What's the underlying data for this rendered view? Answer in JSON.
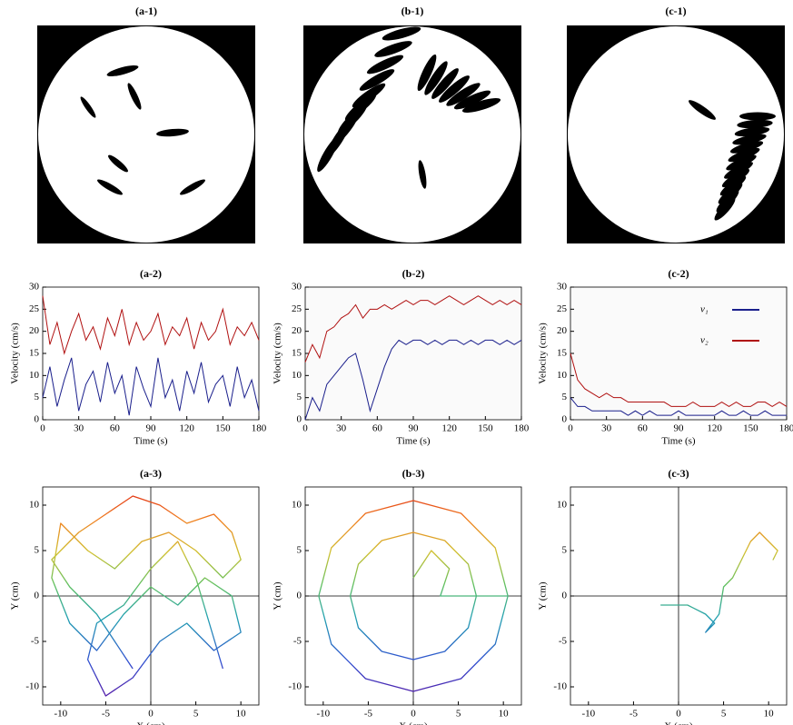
{
  "image_panels": [
    {
      "title": "(a-1)"
    },
    {
      "title": "(b-1)"
    },
    {
      "title": "(c-1)"
    }
  ],
  "chart_data": [
    {
      "type": "line",
      "title": "(a-2)",
      "x_label": "Time (s)",
      "y_label": "Velocity (cm/s)",
      "xlim": [
        0,
        180
      ],
      "ylim": [
        0,
        30
      ],
      "xticks": [
        0,
        30,
        60,
        90,
        120,
        150,
        180
      ],
      "yticks": [
        0,
        5,
        10,
        15,
        20,
        25,
        30
      ],
      "x": [
        0,
        6,
        12,
        18,
        24,
        30,
        36,
        42,
        48,
        54,
        60,
        66,
        72,
        78,
        84,
        90,
        96,
        102,
        108,
        114,
        120,
        126,
        132,
        138,
        144,
        150,
        156,
        162,
        168,
        174,
        180
      ],
      "series": [
        {
          "name": "v₁",
          "color": "#1a1f8c",
          "values": [
            5,
            12,
            3,
            9,
            14,
            2,
            8,
            11,
            4,
            13,
            6,
            10,
            1,
            12,
            7,
            3,
            14,
            5,
            9,
            2,
            11,
            6,
            13,
            4,
            8,
            10,
            3,
            12,
            5,
            9,
            2
          ]
        },
        {
          "name": "v₂",
          "color": "#b01010",
          "values": [
            28,
            17,
            22,
            15,
            20,
            24,
            18,
            21,
            16,
            23,
            19,
            25,
            17,
            22,
            18,
            20,
            24,
            17,
            21,
            19,
            23,
            16,
            22,
            18,
            20,
            25,
            17,
            21,
            19,
            22,
            18
          ]
        }
      ]
    },
    {
      "type": "line",
      "title": "(b-2)",
      "x_label": "Time (s)",
      "y_label": "Velocity (cm/s)",
      "xlim": [
        0,
        180
      ],
      "ylim": [
        0,
        30
      ],
      "xticks": [
        0,
        30,
        60,
        90,
        120,
        150,
        180
      ],
      "yticks": [
        0,
        5,
        10,
        15,
        20,
        25,
        30
      ],
      "x": [
        0,
        6,
        12,
        18,
        24,
        30,
        36,
        42,
        48,
        54,
        60,
        66,
        72,
        78,
        84,
        90,
        96,
        102,
        108,
        114,
        120,
        126,
        132,
        138,
        144,
        150,
        156,
        162,
        168,
        174,
        180
      ],
      "series": [
        {
          "name": "v₁",
          "color": "#1a1f8c",
          "values": [
            0,
            5,
            2,
            8,
            10,
            12,
            14,
            15,
            9,
            2,
            7,
            12,
            16,
            18,
            17,
            18,
            18,
            17,
            18,
            17,
            18,
            18,
            17,
            18,
            17,
            18,
            18,
            17,
            18,
            17,
            18
          ]
        },
        {
          "name": "v₂",
          "color": "#b01010",
          "values": [
            13,
            17,
            14,
            20,
            21,
            23,
            24,
            26,
            23,
            25,
            25,
            26,
            25,
            26,
            27,
            26,
            27,
            27,
            26,
            27,
            28,
            27,
            26,
            27,
            28,
            27,
            26,
            27,
            26,
            27,
            26
          ]
        }
      ]
    },
    {
      "type": "line",
      "title": "(c-2)",
      "x_label": "Time (s)",
      "y_label": "Velocity (cm/s)",
      "xlim": [
        0,
        180
      ],
      "ylim": [
        0,
        30
      ],
      "xticks": [
        0,
        30,
        60,
        90,
        120,
        150,
        180
      ],
      "yticks": [
        0,
        5,
        10,
        15,
        20,
        25,
        30
      ],
      "legend": "upper right",
      "x": [
        0,
        6,
        12,
        18,
        24,
        30,
        36,
        42,
        48,
        54,
        60,
        66,
        72,
        78,
        84,
        90,
        96,
        102,
        108,
        114,
        120,
        126,
        132,
        138,
        144,
        150,
        156,
        162,
        168,
        174,
        180
      ],
      "series": [
        {
          "name": "v₁",
          "color": "#1a1f8c",
          "values": [
            5,
            3,
            3,
            2,
            2,
            2,
            2,
            2,
            1,
            2,
            1,
            2,
            1,
            1,
            1,
            2,
            1,
            1,
            1,
            1,
            1,
            2,
            1,
            1,
            2,
            1,
            1,
            2,
            1,
            1,
            1
          ]
        },
        {
          "name": "v₂",
          "color": "#b01010",
          "values": [
            15,
            9,
            7,
            6,
            5,
            6,
            5,
            5,
            4,
            4,
            4,
            4,
            4,
            4,
            3,
            3,
            3,
            4,
            3,
            3,
            3,
            4,
            3,
            4,
            3,
            3,
            4,
            4,
            3,
            4,
            3
          ]
        }
      ]
    },
    {
      "type": "trajectory",
      "title": "(a-3)",
      "x_label": "X (cm)",
      "y_label": "Y (cm)",
      "xlim": [
        -12,
        12
      ],
      "ylim": [
        -12,
        12
      ],
      "xticks": [
        -10,
        -5,
        0,
        5,
        10
      ],
      "yticks": [
        -10,
        -5,
        0,
        5,
        10
      ],
      "colormap": "rainbow",
      "x": [
        -2,
        -4,
        -6,
        -9,
        -11,
        -8,
        -5,
        -2,
        1,
        4,
        7,
        9,
        10,
        8,
        5,
        2,
        -1,
        -4,
        -7,
        -10,
        -11,
        -9,
        -6,
        -3,
        0,
        3,
        6,
        9,
        10,
        7,
        4,
        1,
        -2,
        -5,
        -7,
        -6,
        -3,
        0,
        3,
        5,
        8
      ],
      "y": [
        -8,
        -5,
        -2,
        1,
        4,
        7,
        9,
        11,
        10,
        8,
        9,
        7,
        4,
        2,
        5,
        7,
        6,
        3,
        5,
        8,
        2,
        -3,
        -6,
        -2,
        1,
        -1,
        2,
        0,
        -4,
        -6,
        -3,
        -5,
        -9,
        -11,
        -7,
        -3,
        -1,
        3,
        6,
        2,
        -8
      ]
    },
    {
      "type": "trajectory",
      "title": "(b-3)",
      "x_label": "X (cm)",
      "y_label": "Y (cm)",
      "xlim": [
        -12,
        12
      ],
      "ylim": [
        -12,
        12
      ],
      "xticks": [
        -10,
        -5,
        0,
        5,
        10
      ],
      "yticks": [
        -10,
        -5,
        0,
        5,
        10
      ],
      "colormap": "rainbow",
      "x": [
        0,
        2,
        4,
        3,
        7,
        6.1,
        3.5,
        0,
        -3.5,
        -6.1,
        -7,
        -6.1,
        -3.5,
        0,
        3.5,
        6.1,
        7,
        10.5,
        9.1,
        5.3,
        0,
        -5.3,
        -9.1,
        -10.5,
        -9.1,
        -5.3,
        0,
        5.3,
        9.1,
        10.5,
        9.1,
        5.3,
        0,
        -5.3,
        -9.1,
        -10.5
      ],
      "y": [
        2,
        5,
        3,
        0,
        0,
        3.5,
        6.1,
        7,
        6.1,
        3.5,
        0,
        -3.5,
        -6.1,
        -7,
        -6.1,
        -3.5,
        0,
        0,
        5.3,
        9.1,
        10.5,
        9.1,
        5.3,
        0,
        -5.3,
        -9.1,
        -10.5,
        -9.1,
        -5.3,
        0,
        5.3,
        9.1,
        10.5,
        9.1,
        5.3,
        0
      ]
    },
    {
      "type": "trajectory",
      "title": "(c-3)",
      "x_label": "X (cm)",
      "y_label": "Y (cm)",
      "xlim": [
        -12,
        12
      ],
      "ylim": [
        -12,
        12
      ],
      "xticks": [
        -10,
        -5,
        0,
        5,
        10
      ],
      "yticks": [
        -10,
        -5,
        0,
        5,
        10
      ],
      "colormap": "rainbow",
      "x": [
        -2,
        1,
        3,
        4,
        3,
        4.5,
        5,
        6,
        7,
        8,
        9,
        10,
        11,
        10.5,
        11
      ],
      "y": [
        -1,
        -1,
        -2,
        -3,
        -4,
        -2,
        1,
        2,
        4,
        6,
        7,
        6,
        5,
        4,
        5
      ]
    }
  ]
}
